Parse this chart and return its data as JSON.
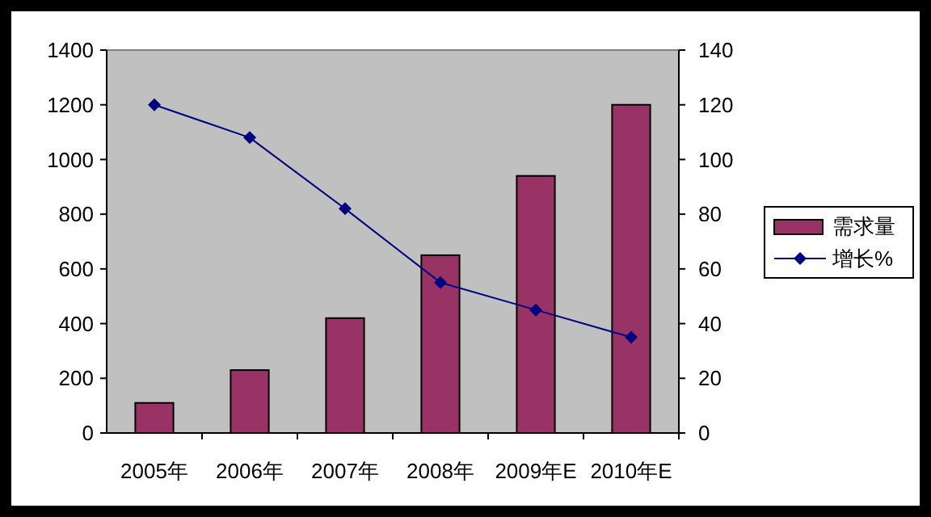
{
  "chart_data": {
    "type": "bar",
    "categories": [
      "2005年",
      "2006年",
      "2007年",
      "2008年",
      "2009年E",
      "2010年E"
    ],
    "series": [
      {
        "name": "需求量",
        "color": "#993366",
        "values": [
          110,
          230,
          420,
          650,
          940,
          1200
        ]
      },
      {
        "name": "增长%",
        "type": "line",
        "axis": "y2",
        "color": "#000080",
        "marker": "diamond",
        "values": [
          120,
          108,
          82,
          55,
          45,
          35
        ]
      }
    ],
    "ylim": [
      0,
      1400
    ],
    "yticks": [
      0,
      200,
      400,
      600,
      800,
      1000,
      1200,
      1400
    ],
    "y2lim": [
      0,
      140
    ],
    "y2ticks": [
      0,
      20,
      40,
      60,
      80,
      100,
      120,
      140
    ],
    "grid": false,
    "legend": "right"
  }
}
